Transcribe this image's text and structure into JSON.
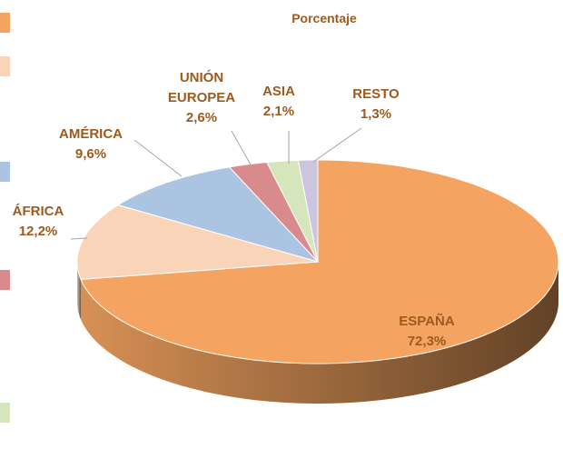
{
  "chart_data": {
    "type": "pie",
    "title": "Porcentaje",
    "categories": [
      "ESPAÑA",
      "ÁFRICA",
      "AMÉRICA",
      "UNIÓN EUROPEA",
      "ASIA",
      "RESTO"
    ],
    "values": [
      72.3,
      12.2,
      9.6,
      2.6,
      2.1,
      1.3
    ],
    "value_labels": [
      "72,3%",
      "12,2%",
      "9,6%",
      "2,6%",
      "2,1%",
      "1,3%"
    ],
    "colors": [
      "#F4A460",
      "#F9D4B8",
      "#AAC4E2",
      "#D98A8C",
      "#D5E5BC",
      "#CBC5DF"
    ]
  }
}
